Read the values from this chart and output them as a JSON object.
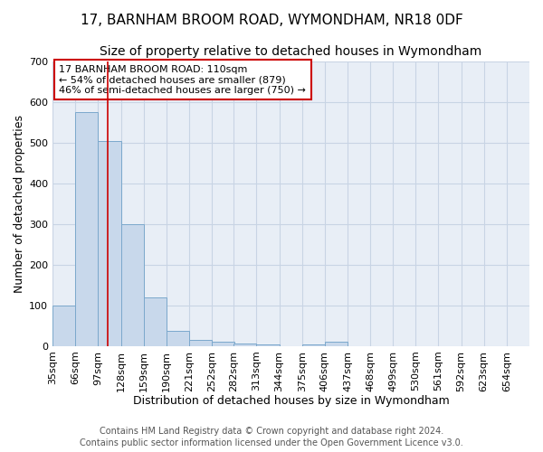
{
  "title": "17, BARNHAM BROOM ROAD, WYMONDHAM, NR18 0DF",
  "subtitle": "Size of property relative to detached houses in Wymondham",
  "xlabel": "Distribution of detached houses by size in Wymondham",
  "ylabel": "Number of detached properties",
  "bar_color": "#c8d8eb",
  "bar_edge_color": "#7ba8cc",
  "red_line_x": 110,
  "bin_left_edges": [
    35,
    66,
    97,
    128,
    159,
    190,
    221,
    252,
    282,
    313,
    344,
    375,
    406,
    437,
    468,
    499,
    530,
    561,
    592,
    623,
    654
  ],
  "bin_width": 31,
  "values": [
    100,
    575,
    505,
    300,
    120,
    38,
    15,
    10,
    7,
    5,
    0,
    5,
    10,
    0,
    0,
    0,
    0,
    0,
    0,
    0,
    0
  ],
  "categories": [
    "35sqm",
    "66sqm",
    "97sqm",
    "128sqm",
    "159sqm",
    "190sqm",
    "221sqm",
    "252sqm",
    "282sqm",
    "313sqm",
    "344sqm",
    "375sqm",
    "406sqm",
    "437sqm",
    "468sqm",
    "499sqm",
    "530sqm",
    "561sqm",
    "592sqm",
    "623sqm",
    "654sqm"
  ],
  "ylim": [
    0,
    700
  ],
  "yticks": [
    0,
    100,
    200,
    300,
    400,
    500,
    600,
    700
  ],
  "annotation_text": "17 BARNHAM BROOM ROAD: 110sqm\n← 54% of detached houses are smaller (879)\n46% of semi-detached houses are larger (750) →",
  "annotation_box_color": "#ffffff",
  "annotation_box_edge": "#cc0000",
  "grid_color": "#c8d4e4",
  "background_color": "#e8eef6",
  "footer_text": "Contains HM Land Registry data © Crown copyright and database right 2024.\nContains public sector information licensed under the Open Government Licence v3.0.",
  "title_fontsize": 11,
  "subtitle_fontsize": 10,
  "xlabel_fontsize": 9,
  "ylabel_fontsize": 9,
  "tick_fontsize": 8,
  "footer_fontsize": 7
}
